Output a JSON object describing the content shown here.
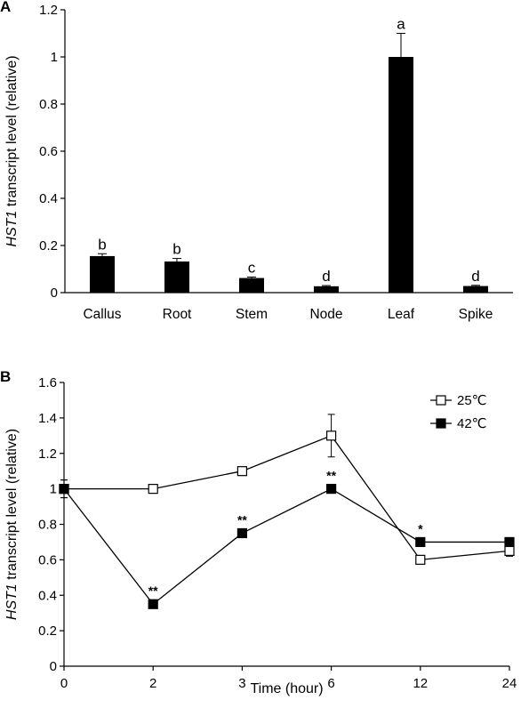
{
  "panels": {
    "a": {
      "letter": "A"
    },
    "b": {
      "letter": "B"
    }
  },
  "chart_data": [
    {
      "type": "bar",
      "categories": [
        "Callus",
        "Root",
        "Stem",
        "Node",
        "Leaf",
        "Spike"
      ],
      "values": [
        0.155,
        0.132,
        0.062,
        0.027,
        1.0,
        0.028
      ],
      "errors": [
        0.01,
        0.013,
        0.004,
        0.003,
        0.1,
        0.003
      ],
      "significance": [
        "b",
        "b",
        "c",
        "d",
        "a",
        "d"
      ],
      "ylabel_italic": "HST1",
      "ylabel_rest": " transcript level (relative)",
      "xlabel": "",
      "ylim": [
        0,
        1.2
      ],
      "yticks": [
        "0",
        "0.2",
        "0.4",
        "0.6",
        "0.8",
        "1",
        "1.2"
      ],
      "bar_color": "#000000",
      "grid": false
    },
    {
      "type": "line",
      "categories": [
        "0",
        "2",
        "3",
        "6",
        "12",
        "24"
      ],
      "series": [
        {
          "name": "25℃",
          "marker": "open-square",
          "values": [
            1.0,
            1.0,
            1.1,
            1.3,
            0.6,
            0.65
          ],
          "errors": [
            0.05,
            0.0,
            0.0,
            0.12,
            0.0,
            0.03
          ]
        },
        {
          "name": "42℃",
          "marker": "filled-square",
          "values": [
            1.0,
            0.35,
            0.75,
            1.0,
            0.7,
            0.7
          ],
          "errors": [
            0.05,
            0.0,
            0.0,
            0.0,
            0.0,
            0.0
          ],
          "annotations": [
            "",
            "**",
            "**",
            "**",
            "*",
            ""
          ]
        }
      ],
      "ylabel_italic": "HST1",
      "ylabel_rest": " transcript level (relative)",
      "xlabel": "Time (hour)",
      "ylim": [
        0,
        1.6
      ],
      "yticks": [
        "0",
        "0.2",
        "0.4",
        "0.6",
        "0.8",
        "1",
        "1.2",
        "1.4",
        "1.6"
      ],
      "legend_position": "top-right",
      "grid": false
    }
  ]
}
